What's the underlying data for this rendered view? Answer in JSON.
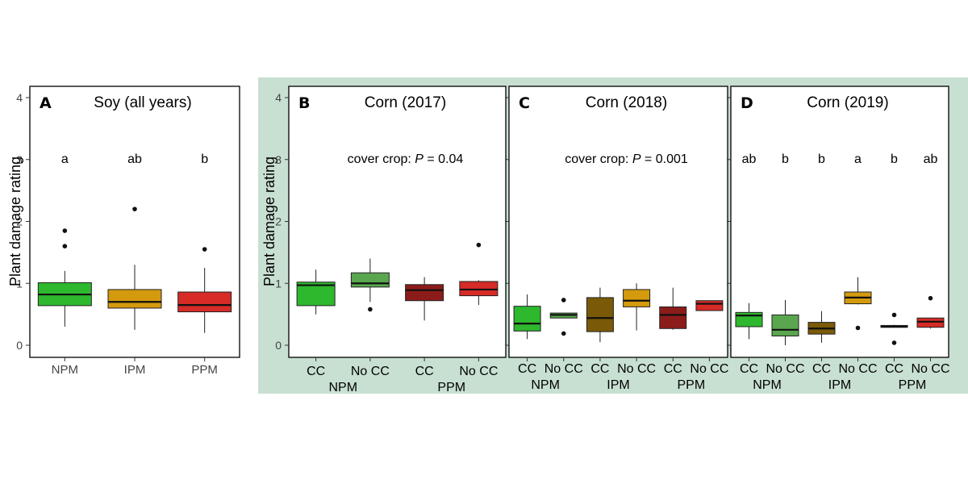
{
  "chart_data": [
    {
      "type": "box",
      "letter": "A",
      "title": "Soy (all years)",
      "ylabel": "Plant damage rating",
      "ylim": [
        0,
        4
      ],
      "yticks": [
        "0",
        "1",
        "2",
        "3",
        "4"
      ],
      "categories": [
        "NPM",
        "IPM",
        "PPM"
      ],
      "boxes": [
        {
          "label": "NPM",
          "color": "#2db82d",
          "whisker_low": 0.3,
          "q1": 0.64,
          "median": 0.82,
          "q3": 1.01,
          "whisker_high": 1.2,
          "outliers": [
            1.6,
            1.85
          ],
          "letter": "a"
        },
        {
          "label": "IPM",
          "color": "#d49a0e",
          "whisker_low": 0.25,
          "q1": 0.6,
          "median": 0.7,
          "q3": 0.9,
          "whisker_high": 1.3,
          "outliers": [
            2.2
          ],
          "letter": "ab"
        },
        {
          "label": "PPM",
          "color": "#d62b26",
          "whisker_low": 0.2,
          "q1": 0.54,
          "median": 0.65,
          "q3": 0.86,
          "whisker_high": 1.25,
          "outliers": [
            1.55
          ],
          "letter": "b"
        }
      ]
    },
    {
      "type": "box",
      "letter": "B",
      "title": "Corn (2017)",
      "ylabel": "Plant damage rating",
      "ylim": [
        0,
        4
      ],
      "yticks": [
        "0",
        "1",
        "2",
        "3",
        "4"
      ],
      "annotation": {
        "prefix": "cover crop: ",
        "italic": "P",
        "suffix": " = 0.04"
      },
      "categories": [
        "CC",
        "No CC",
        "CC",
        "No CC"
      ],
      "groups": [
        "NPM",
        "PPM"
      ],
      "boxes": [
        {
          "label": "CC",
          "color": "#2db82d",
          "whisker_low": 0.5,
          "q1": 0.64,
          "median": 0.97,
          "q3": 1.02,
          "whisker_high": 1.22,
          "outliers": []
        },
        {
          "label": "No CC",
          "color": "#5aa64f",
          "whisker_low": 0.7,
          "q1": 0.94,
          "median": 1.0,
          "q3": 1.17,
          "whisker_high": 1.4,
          "outliers": [
            0.58
          ]
        },
        {
          "label": "CC",
          "color": "#8b1c1a",
          "whisker_low": 0.4,
          "q1": 0.72,
          "median": 0.89,
          "q3": 0.98,
          "whisker_high": 1.1,
          "outliers": []
        },
        {
          "label": "No CC",
          "color": "#d62b26",
          "whisker_low": 0.65,
          "q1": 0.8,
          "median": 0.9,
          "q3": 1.03,
          "whisker_high": 1.05,
          "outliers": [
            1.62
          ]
        }
      ]
    },
    {
      "type": "box",
      "letter": "C",
      "title": "Corn (2018)",
      "ylim": [
        0,
        4
      ],
      "annotation": {
        "prefix": "cover crop: ",
        "italic": "P",
        "suffix": " = 0.001"
      },
      "categories": [
        "CC",
        "No CC",
        "CC",
        "No CC",
        "CC",
        "No CC"
      ],
      "groups": [
        "NPM",
        "IPM",
        "PPM"
      ],
      "boxes": [
        {
          "label": "CC",
          "color": "#2db82d",
          "whisker_low": 0.1,
          "q1": 0.23,
          "median": 0.35,
          "q3": 0.63,
          "whisker_high": 0.82,
          "outliers": []
        },
        {
          "label": "No CC",
          "color": "#5aa64f",
          "whisker_low": 0.44,
          "q1": 0.44,
          "median": 0.49,
          "q3": 0.52,
          "whisker_high": 0.52,
          "outliers": [
            0.19,
            0.73
          ]
        },
        {
          "label": "CC",
          "color": "#7a5a08",
          "whisker_low": 0.05,
          "q1": 0.22,
          "median": 0.44,
          "q3": 0.77,
          "whisker_high": 0.93,
          "outliers": []
        },
        {
          "label": "No CC",
          "color": "#d49a0e",
          "whisker_low": 0.24,
          "q1": 0.62,
          "median": 0.72,
          "q3": 0.9,
          "whisker_high": 1.0,
          "outliers": []
        },
        {
          "label": "CC",
          "color": "#8b1c1a",
          "whisker_low": 0.25,
          "q1": 0.27,
          "median": 0.49,
          "q3": 0.62,
          "whisker_high": 0.93,
          "outliers": []
        },
        {
          "label": "No CC",
          "color": "#d62b26",
          "whisker_low": 0.56,
          "q1": 0.56,
          "median": 0.67,
          "q3": 0.72,
          "whisker_high": 0.72,
          "outliers": []
        }
      ]
    },
    {
      "type": "box",
      "letter": "D",
      "title": "Corn (2019)",
      "ylim": [
        0,
        4
      ],
      "categories": [
        "CC",
        "No CC",
        "CC",
        "No CC",
        "CC",
        "No CC"
      ],
      "groups": [
        "NPM",
        "IPM",
        "PPM"
      ],
      "boxes": [
        {
          "label": "CC",
          "color": "#2db82d",
          "whisker_low": 0.1,
          "q1": 0.3,
          "median": 0.48,
          "q3": 0.53,
          "whisker_high": 0.68,
          "outliers": [],
          "letter": "ab"
        },
        {
          "label": "No CC",
          "color": "#5aa64f",
          "whisker_low": 0.0,
          "q1": 0.15,
          "median": 0.25,
          "q3": 0.49,
          "whisker_high": 0.73,
          "outliers": [],
          "letter": "b"
        },
        {
          "label": "CC",
          "color": "#7a5a08",
          "whisker_low": 0.04,
          "q1": 0.18,
          "median": 0.27,
          "q3": 0.37,
          "whisker_high": 0.55,
          "outliers": [],
          "letter": "b"
        },
        {
          "label": "No CC",
          "color": "#d49a0e",
          "whisker_low": 0.66,
          "q1": 0.67,
          "median": 0.77,
          "q3": 0.86,
          "whisker_high": 1.1,
          "outliers": [
            0.28
          ],
          "letter": "a"
        },
        {
          "label": "CC",
          "color": "#8b1c1a",
          "whisker_low": 0.29,
          "q1": 0.29,
          "median": 0.3,
          "q3": 0.32,
          "whisker_high": 0.33,
          "outliers": [
            0.04,
            0.49
          ],
          "letter": "b"
        },
        {
          "label": "No CC",
          "color": "#d62b26",
          "whisker_low": 0.27,
          "q1": 0.29,
          "median": 0.38,
          "q3": 0.44,
          "whisker_high": 0.44,
          "outliers": [
            0.76
          ],
          "letter": "ab"
        }
      ]
    }
  ]
}
